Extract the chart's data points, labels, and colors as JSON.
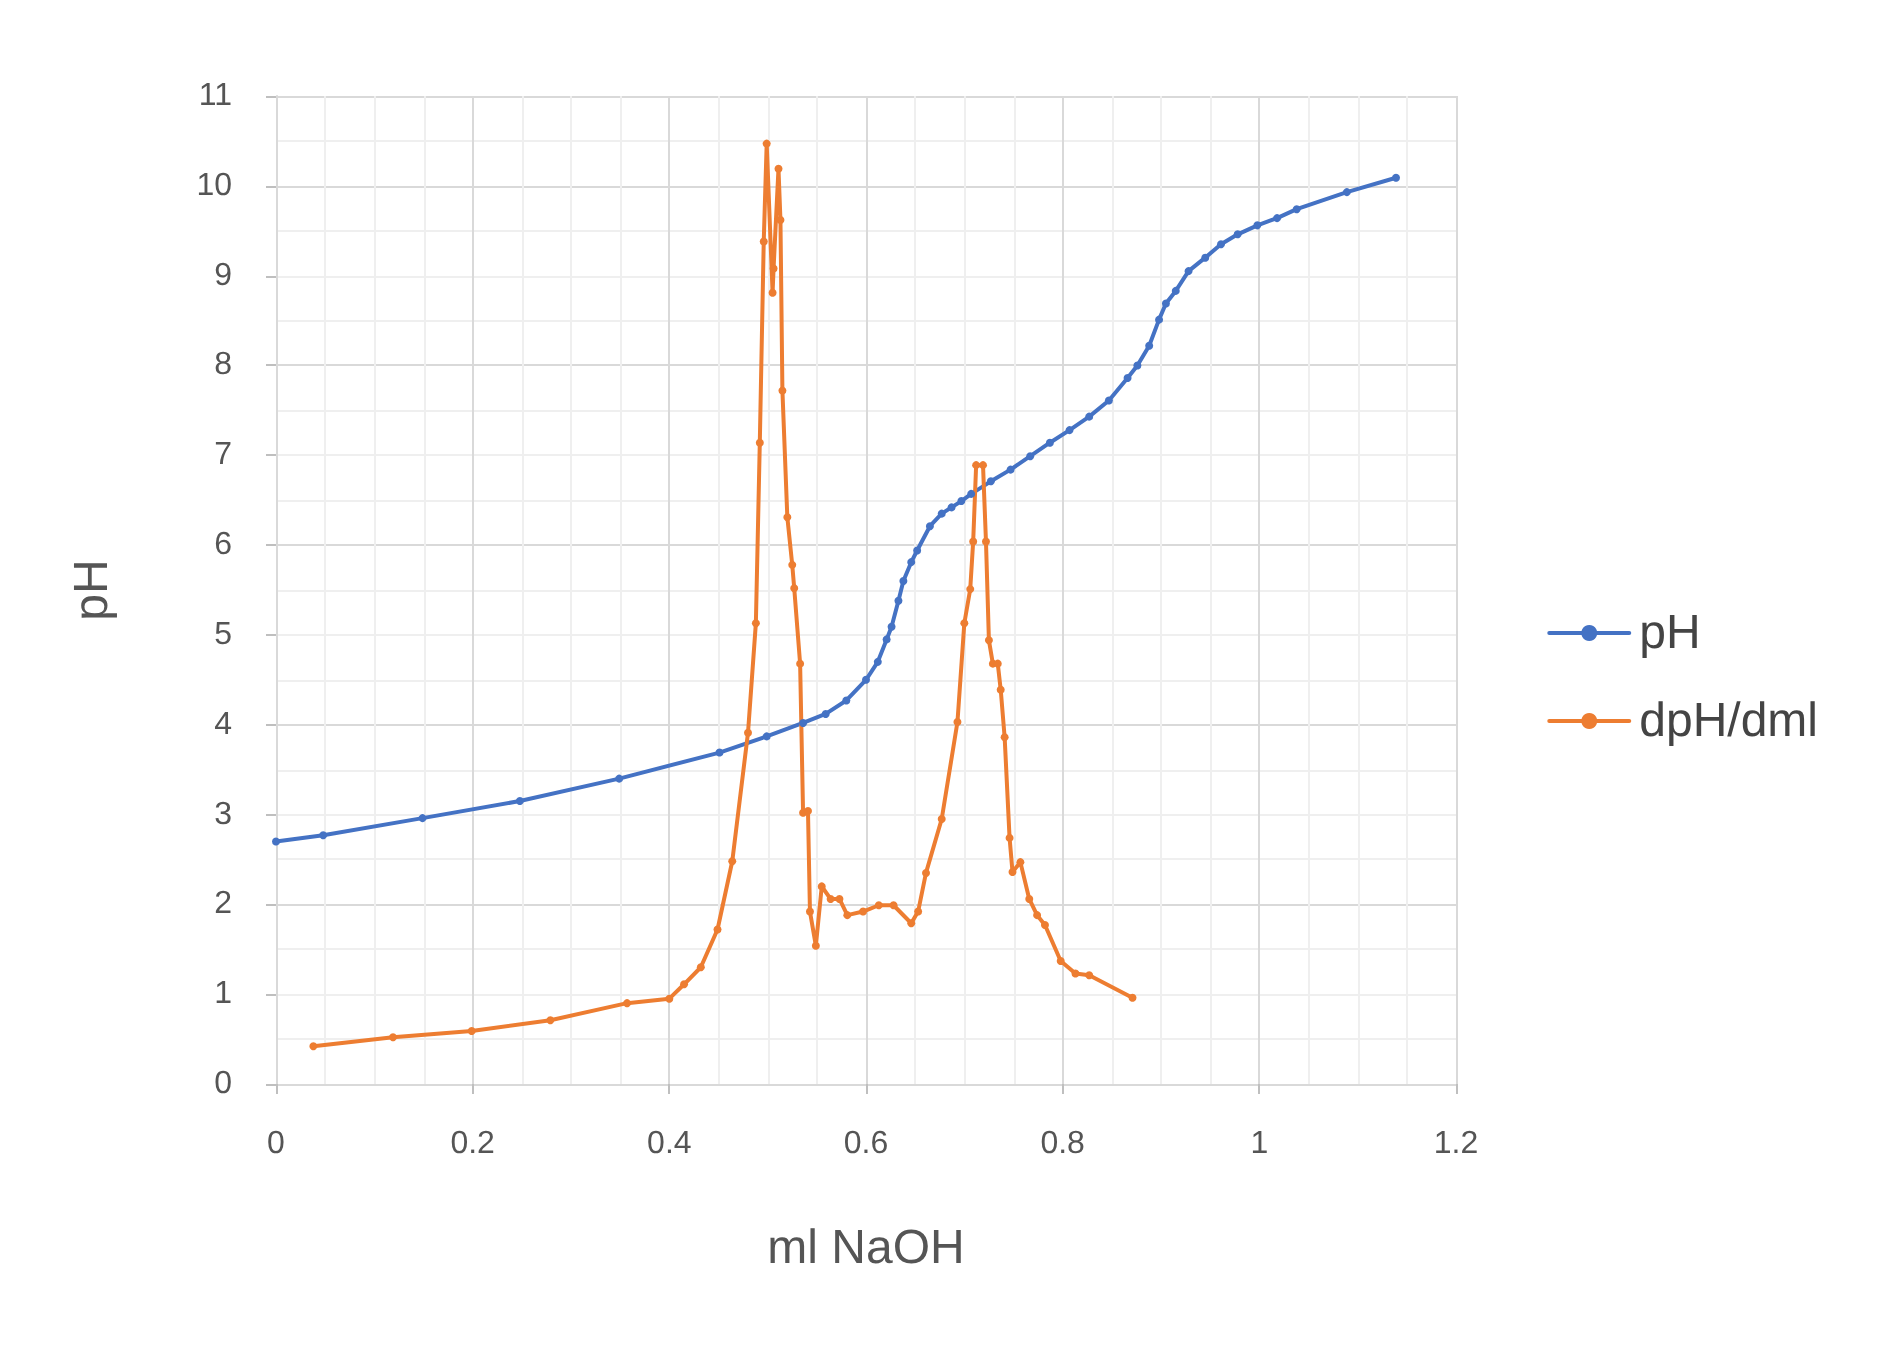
{
  "chart_data": {
    "type": "line",
    "xlabel": "ml NaOH",
    "ylabel": "pH",
    "xlim": [
      0,
      1.2
    ],
    "xticks": [
      0,
      0.2,
      0.4,
      0.6,
      0.8,
      1,
      1.2
    ],
    "ylim": [
      0,
      11
    ],
    "yticks": [
      0,
      1,
      2,
      3,
      4,
      5,
      6,
      7,
      8,
      9,
      10,
      11
    ],
    "grid": true,
    "legend": "right",
    "marker": "circle",
    "line_style": "solid",
    "series": [
      {
        "name": "pH",
        "color": "#4472c4",
        "x": [
          0,
          0.048,
          0.149,
          0.248,
          0.349,
          0.451,
          0.499,
          0.536,
          0.559,
          0.58,
          0.6,
          0.612,
          0.621,
          0.626,
          0.633,
          0.638,
          0.646,
          0.652,
          0.665,
          0.677,
          0.687,
          0.697,
          0.707,
          0.727,
          0.747,
          0.767,
          0.787,
          0.807,
          0.827,
          0.847,
          0.866,
          0.876,
          0.888,
          0.898,
          0.905,
          0.915,
          0.928,
          0.945,
          0.961,
          0.978,
          0.998,
          1.018,
          1.038,
          1.089,
          1.139
        ],
        "values": [
          2.7,
          2.77,
          2.96,
          3.15,
          3.4,
          3.69,
          3.87,
          4.02,
          4.12,
          4.27,
          4.5,
          4.7,
          4.95,
          5.09,
          5.38,
          5.6,
          5.81,
          5.94,
          6.21,
          6.35,
          6.42,
          6.49,
          6.57,
          6.71,
          6.84,
          6.99,
          7.14,
          7.28,
          7.43,
          7.61,
          7.86,
          8.0,
          8.22,
          8.51,
          8.69,
          8.83,
          9.05,
          9.2,
          9.35,
          9.46,
          9.56,
          9.64,
          9.74,
          9.93,
          10.09
        ]
      },
      {
        "name": "dpH/dml",
        "color": "#ed7d31",
        "x": [
          0.038,
          0.119,
          0.199,
          0.279,
          0.357,
          0.4,
          0.415,
          0.432,
          0.449,
          0.464,
          0.48,
          0.488,
          0.492,
          0.496,
          0.499,
          0.505,
          0.506,
          0.511,
          0.513,
          0.515,
          0.52,
          0.525,
          0.527,
          0.533,
          0.536,
          0.541,
          0.543,
          0.549,
          0.555,
          0.564,
          0.573,
          0.581,
          0.597,
          0.613,
          0.628,
          0.646,
          0.653,
          0.661,
          0.677,
          0.693,
          0.7,
          0.706,
          0.709,
          0.712,
          0.719,
          0.722,
          0.725,
          0.729,
          0.734,
          0.737,
          0.741,
          0.746,
          0.749,
          0.757,
          0.766,
          0.774,
          0.782,
          0.798,
          0.813,
          0.827,
          0.871
        ],
        "values": [
          0.42,
          0.52,
          0.59,
          0.71,
          0.9,
          0.95,
          1.11,
          1.3,
          1.72,
          2.48,
          3.91,
          5.13,
          7.14,
          9.38,
          10.47,
          8.81,
          9.08,
          10.19,
          9.62,
          7.72,
          6.31,
          5.78,
          5.52,
          4.68,
          3.02,
          3.04,
          1.92,
          1.54,
          2.2,
          2.06,
          2.06,
          1.88,
          1.92,
          1.99,
          1.99,
          1.79,
          1.92,
          2.35,
          2.95,
          4.03,
          5.13,
          5.51,
          6.04,
          6.89,
          6.89,
          6.04,
          4.94,
          4.68,
          4.68,
          4.39,
          3.86,
          2.74,
          2.36,
          2.47,
          2.06,
          1.88,
          1.77,
          1.37,
          1.23,
          1.21,
          0.96
        ]
      }
    ]
  }
}
